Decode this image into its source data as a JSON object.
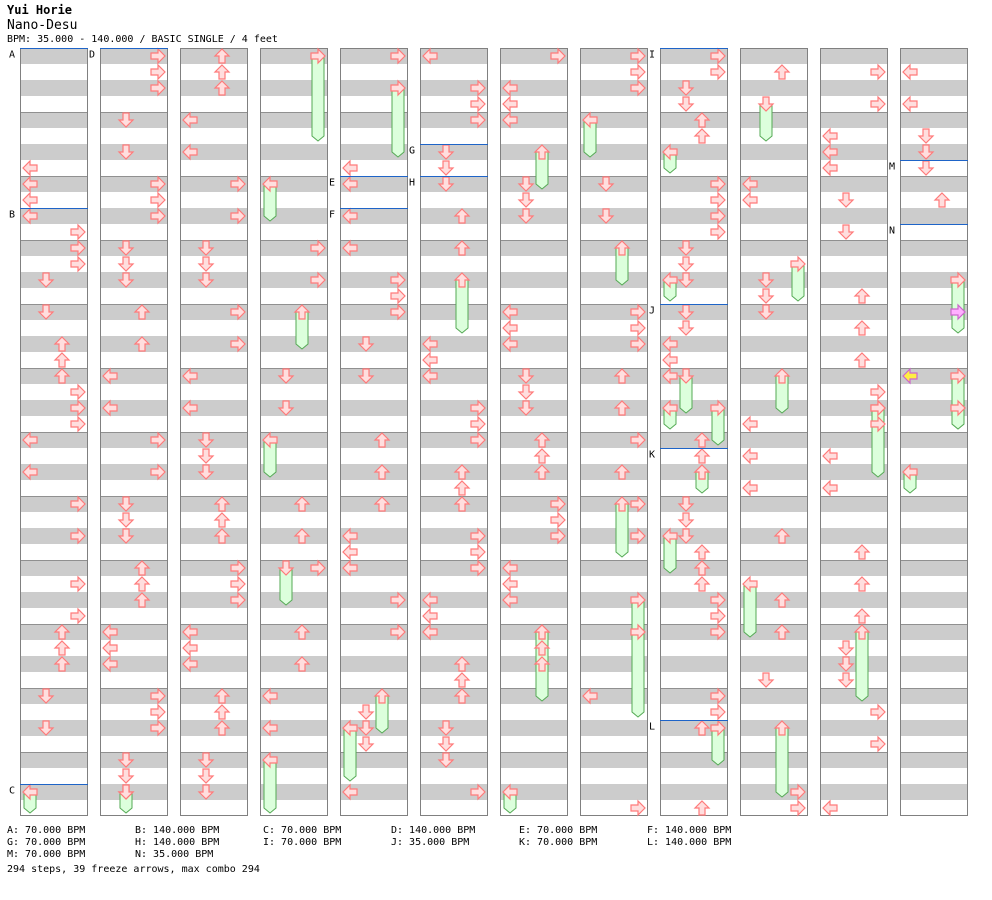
{
  "artist": "Yui Horie",
  "title": "Nano-Desu",
  "meta_line": "BPM: 35.000 - 140.000 / BASIC SINGLE / 4 feet",
  "legend": [
    [
      "A: 70.000 BPM",
      "B: 140.000 BPM",
      "C: 70.000 BPM",
      "D: 140.000 BPM",
      "E: 70.000 BPM",
      "F: 140.000 BPM"
    ],
    [
      "G: 70.000 BPM",
      "H: 140.000 BPM",
      "I: 70.000 BPM",
      "J: 35.000 BPM",
      "K: 70.000 BPM",
      "L: 140.000 BPM"
    ],
    [
      "M: 70.000 BPM",
      "N: 35.000 BPM"
    ]
  ],
  "stats": "294 steps, 39 freeze arrows, max combo 294",
  "chart_data": {
    "type": "step_chart",
    "lanes": [
      "left",
      "down",
      "up",
      "right"
    ],
    "columns": 12,
    "beats_per_column": 48,
    "colors": {
      "arrow": "#ff7a7a",
      "arrow_fill": "#ffdede",
      "freeze": "#a8e8a8",
      "freeze_fill": "#dcffdc",
      "band": "#cccccc",
      "bpm_line": "#1e64c8",
      "pink": "#ffb0ff",
      "yellow": "#ffee44"
    },
    "bpm_markers": [
      {
        "label": "A",
        "beat": 0
      },
      {
        "label": "B",
        "beat": 10
      },
      {
        "label": "C",
        "beat": 46
      },
      {
        "label": "D",
        "beat": 48
      },
      {
        "label": "E",
        "beat": 200
      },
      {
        "label": "F",
        "beat": 202
      },
      {
        "label": "G",
        "beat": 246
      },
      {
        "label": "H",
        "beat": 248
      },
      {
        "label": "I",
        "beat": 384
      },
      {
        "label": "J",
        "beat": 400
      },
      {
        "label": "K",
        "beat": 409
      },
      {
        "label": "L",
        "beat": 426
      },
      {
        "label": "M",
        "beat": 535
      },
      {
        "label": "N",
        "beat": 539
      }
    ],
    "notes": [
      [
        0,
        7,
        0
      ],
      [
        0,
        8,
        0
      ],
      [
        0,
        9,
        0
      ],
      [
        0,
        10,
        0
      ],
      [
        0,
        11,
        3
      ],
      [
        0,
        12,
        3
      ],
      [
        0,
        13,
        3
      ],
      [
        0,
        14,
        1
      ],
      [
        0,
        16,
        1
      ],
      [
        0,
        18,
        2
      ],
      [
        0,
        19,
        2
      ],
      [
        0,
        20,
        2
      ],
      [
        0,
        21,
        3
      ],
      [
        0,
        22,
        3
      ],
      [
        0,
        23,
        3
      ],
      [
        0,
        24,
        0
      ],
      [
        0,
        26,
        0
      ],
      [
        0,
        28,
        3
      ],
      [
        0,
        30,
        3
      ],
      [
        0,
        33,
        3
      ],
      [
        0,
        35,
        3
      ],
      [
        0,
        36,
        2
      ],
      [
        0,
        37,
        2
      ],
      [
        0,
        38,
        2
      ],
      [
        0,
        40,
        1
      ],
      [
        0,
        42,
        1
      ],
      [
        1,
        0,
        3
      ],
      [
        1,
        1,
        3
      ],
      [
        1,
        2,
        3
      ],
      [
        1,
        4,
        1
      ],
      [
        1,
        6,
        1
      ],
      [
        1,
        8,
        3
      ],
      [
        1,
        9,
        3
      ],
      [
        1,
        10,
        3
      ],
      [
        1,
        12,
        1
      ],
      [
        1,
        13,
        1
      ],
      [
        1,
        14,
        1
      ],
      [
        1,
        16,
        2
      ],
      [
        1,
        18,
        2
      ],
      [
        1,
        20,
        0
      ],
      [
        1,
        22,
        0
      ],
      [
        1,
        24,
        3
      ],
      [
        1,
        26,
        3
      ],
      [
        1,
        28,
        1
      ],
      [
        1,
        29,
        1
      ],
      [
        1,
        30,
        1
      ],
      [
        1,
        32,
        2
      ],
      [
        1,
        33,
        2
      ],
      [
        1,
        34,
        2
      ],
      [
        1,
        36,
        0
      ],
      [
        1,
        37,
        0
      ],
      [
        1,
        38,
        0
      ],
      [
        1,
        40,
        3
      ],
      [
        1,
        41,
        3
      ],
      [
        1,
        42,
        3
      ],
      [
        1,
        44,
        1
      ],
      [
        1,
        45,
        1
      ],
      [
        1,
        46,
        1
      ],
      [
        2,
        0,
        2
      ],
      [
        2,
        1,
        2
      ],
      [
        2,
        2,
        2
      ],
      [
        2,
        4,
        0
      ],
      [
        2,
        6,
        0
      ],
      [
        2,
        8,
        3
      ],
      [
        2,
        10,
        3
      ],
      [
        2,
        12,
        1
      ],
      [
        2,
        13,
        1
      ],
      [
        2,
        14,
        1
      ],
      [
        2,
        16,
        3
      ],
      [
        2,
        18,
        3
      ],
      [
        2,
        20,
        0
      ],
      [
        2,
        22,
        0
      ],
      [
        2,
        24,
        1
      ],
      [
        2,
        25,
        1
      ],
      [
        2,
        26,
        1
      ],
      [
        2,
        28,
        2
      ],
      [
        2,
        29,
        2
      ],
      [
        2,
        30,
        2
      ],
      [
        2,
        32,
        3
      ],
      [
        2,
        33,
        3
      ],
      [
        2,
        34,
        3
      ],
      [
        2,
        36,
        0
      ],
      [
        2,
        37,
        0
      ],
      [
        2,
        38,
        0
      ],
      [
        2,
        40,
        2
      ],
      [
        2,
        41,
        2
      ],
      [
        2,
        42,
        2
      ],
      [
        2,
        44,
        1
      ],
      [
        2,
        45,
        1
      ],
      [
        2,
        46,
        1
      ],
      [
        3,
        12,
        3
      ],
      [
        3,
        14,
        3
      ],
      [
        3,
        20,
        1
      ],
      [
        3,
        22,
        1
      ],
      [
        3,
        28,
        2
      ],
      [
        3,
        30,
        2
      ],
      [
        3,
        32,
        3
      ],
      [
        3,
        36,
        2
      ],
      [
        3,
        38,
        2
      ],
      [
        3,
        40,
        0
      ],
      [
        3,
        42,
        0
      ],
      [
        4,
        0,
        3
      ],
      [
        4,
        7,
        0
      ],
      [
        4,
        8,
        0
      ],
      [
        4,
        10,
        0
      ],
      [
        4,
        12,
        0
      ],
      [
        4,
        14,
        3
      ],
      [
        4,
        15,
        3
      ],
      [
        4,
        16,
        3
      ],
      [
        4,
        18,
        1
      ],
      [
        4,
        20,
        1
      ],
      [
        4,
        24,
        2
      ],
      [
        4,
        26,
        2
      ],
      [
        4,
        28,
        2
      ],
      [
        4,
        30,
        0
      ],
      [
        4,
        31,
        0
      ],
      [
        4,
        32,
        0
      ],
      [
        4,
        34,
        3
      ],
      [
        4,
        36,
        3
      ],
      [
        4,
        41,
        1
      ],
      [
        4,
        42,
        1
      ],
      [
        4,
        43,
        1
      ],
      [
        4,
        46,
        0
      ],
      [
        5,
        0,
        0
      ],
      [
        5,
        2,
        3
      ],
      [
        5,
        3,
        3
      ],
      [
        5,
        4,
        3
      ],
      [
        5,
        6,
        1
      ],
      [
        5,
        7,
        1
      ],
      [
        5,
        8,
        1
      ],
      [
        5,
        10,
        2
      ],
      [
        5,
        12,
        2
      ],
      [
        5,
        18,
        0
      ],
      [
        5,
        19,
        0
      ],
      [
        5,
        20,
        0
      ],
      [
        5,
        22,
        3
      ],
      [
        5,
        23,
        3
      ],
      [
        5,
        24,
        3
      ],
      [
        5,
        26,
        2
      ],
      [
        5,
        27,
        2
      ],
      [
        5,
        28,
        2
      ],
      [
        5,
        30,
        3
      ],
      [
        5,
        31,
        3
      ],
      [
        5,
        32,
        3
      ],
      [
        5,
        34,
        0
      ],
      [
        5,
        35,
        0
      ],
      [
        5,
        36,
        0
      ],
      [
        5,
        38,
        2
      ],
      [
        5,
        39,
        2
      ],
      [
        5,
        40,
        2
      ],
      [
        5,
        42,
        1
      ],
      [
        5,
        43,
        1
      ],
      [
        5,
        44,
        1
      ],
      [
        5,
        46,
        3
      ],
      [
        6,
        0,
        3
      ],
      [
        6,
        2,
        0
      ],
      [
        6,
        3,
        0
      ],
      [
        6,
        4,
        0
      ],
      [
        6,
        8,
        1
      ],
      [
        6,
        9,
        1
      ],
      [
        6,
        10,
        1
      ],
      [
        6,
        16,
        0
      ],
      [
        6,
        17,
        0
      ],
      [
        6,
        18,
        0
      ],
      [
        6,
        20,
        1
      ],
      [
        6,
        21,
        1
      ],
      [
        6,
        22,
        1
      ],
      [
        6,
        24,
        2
      ],
      [
        6,
        25,
        2
      ],
      [
        6,
        26,
        2
      ],
      [
        6,
        28,
        3
      ],
      [
        6,
        29,
        3
      ],
      [
        6,
        30,
        3
      ],
      [
        6,
        32,
        0
      ],
      [
        6,
        33,
        0
      ],
      [
        6,
        34,
        0
      ],
      [
        6,
        36,
        2
      ],
      [
        6,
        37,
        2
      ],
      [
        6,
        38,
        2
      ],
      [
        7,
        0,
        3
      ],
      [
        7,
        1,
        3
      ],
      [
        7,
        2,
        3
      ],
      [
        7,
        8,
        1
      ],
      [
        7,
        10,
        1
      ],
      [
        7,
        16,
        3
      ],
      [
        7,
        17,
        3
      ],
      [
        7,
        18,
        3
      ],
      [
        7,
        20,
        2
      ],
      [
        7,
        22,
        2
      ],
      [
        7,
        24,
        3
      ],
      [
        7,
        26,
        2
      ],
      [
        7,
        28,
        3
      ],
      [
        7,
        30,
        3
      ],
      [
        7,
        40,
        0
      ],
      [
        7,
        47,
        3
      ],
      [
        8,
        0,
        3
      ],
      [
        8,
        1,
        3
      ],
      [
        8,
        2,
        1
      ],
      [
        8,
        3,
        1
      ],
      [
        8,
        4,
        2
      ],
      [
        8,
        5,
        2
      ],
      [
        8,
        8,
        3
      ],
      [
        8,
        9,
        3
      ],
      [
        8,
        10,
        3
      ],
      [
        8,
        11,
        3
      ],
      [
        8,
        12,
        1
      ],
      [
        8,
        13,
        1
      ],
      [
        8,
        14,
        1
      ],
      [
        8,
        16,
        1
      ],
      [
        8,
        17,
        1
      ],
      [
        8,
        18,
        0
      ],
      [
        8,
        19,
        0
      ],
      [
        8,
        20,
        0
      ],
      [
        8,
        24,
        2
      ],
      [
        8,
        25,
        2
      ],
      [
        8,
        26,
        2
      ],
      [
        8,
        28,
        1
      ],
      [
        8,
        29,
        1
      ],
      [
        8,
        30,
        1
      ],
      [
        8,
        31,
        2
      ],
      [
        8,
        32,
        2
      ],
      [
        8,
        33,
        2
      ],
      [
        8,
        34,
        3
      ],
      [
        8,
        35,
        3
      ],
      [
        8,
        36,
        3
      ],
      [
        8,
        40,
        3
      ],
      [
        8,
        41,
        3
      ],
      [
        8,
        42,
        2
      ],
      [
        8,
        47,
        2
      ],
      [
        9,
        1,
        2
      ],
      [
        9,
        8,
        0
      ],
      [
        9,
        9,
        0
      ],
      [
        9,
        14,
        1
      ],
      [
        9,
        15,
        1
      ],
      [
        9,
        16,
        1
      ],
      [
        9,
        23,
        0
      ],
      [
        9,
        25,
        0
      ],
      [
        9,
        27,
        0
      ],
      [
        9,
        30,
        2
      ],
      [
        9,
        34,
        2
      ],
      [
        9,
        36,
        2
      ],
      [
        9,
        39,
        1
      ],
      [
        9,
        46,
        3
      ],
      [
        9,
        47,
        3
      ],
      [
        10,
        1,
        3
      ],
      [
        10,
        3,
        3
      ],
      [
        10,
        5,
        0
      ],
      [
        10,
        6,
        0
      ],
      [
        10,
        7,
        0
      ],
      [
        10,
        9,
        1
      ],
      [
        10,
        11,
        1
      ],
      [
        10,
        15,
        2
      ],
      [
        10,
        17,
        2
      ],
      [
        10,
        19,
        2
      ],
      [
        10,
        21,
        3
      ],
      [
        10,
        22,
        3
      ],
      [
        10,
        23,
        3
      ],
      [
        10,
        25,
        0
      ],
      [
        10,
        27,
        0
      ],
      [
        10,
        31,
        2
      ],
      [
        10,
        33,
        2
      ],
      [
        10,
        35,
        2
      ],
      [
        10,
        37,
        1
      ],
      [
        10,
        38,
        1
      ],
      [
        10,
        39,
        1
      ],
      [
        10,
        41,
        3
      ],
      [
        10,
        43,
        3
      ],
      [
        10,
        47,
        0
      ],
      [
        11,
        1,
        0
      ],
      [
        11,
        3,
        0
      ],
      [
        11,
        5,
        1
      ],
      [
        11,
        6,
        1
      ],
      [
        11,
        7,
        1
      ],
      [
        11,
        9,
        2
      ]
    ],
    "freezes": [
      [
        0,
        46,
        47,
        0
      ],
      [
        3,
        0,
        5,
        3
      ],
      [
        3,
        8,
        10,
        0
      ],
      [
        3,
        16,
        18,
        2
      ],
      [
        3,
        24,
        26,
        0
      ],
      [
        3,
        32,
        34,
        1
      ],
      [
        3,
        44,
        47,
        0
      ],
      [
        4,
        2,
        6,
        3
      ],
      [
        4,
        40,
        42,
        2
      ],
      [
        5,
        14,
        17,
        2
      ],
      [
        6,
        6,
        8,
        2
      ],
      [
        6,
        36,
        40,
        2
      ],
      [
        7,
        4,
        6,
        0
      ],
      [
        7,
        12,
        14,
        2
      ],
      [
        7,
        28,
        31,
        2
      ],
      [
        7,
        34,
        37,
        3
      ],
      [
        8,
        6,
        7,
        0
      ],
      [
        8,
        14,
        15,
        0
      ],
      [
        8,
        20,
        22,
        1
      ],
      [
        8,
        22,
        23,
        0
      ],
      [
        8,
        26,
        27,
        2
      ],
      [
        8,
        22,
        24,
        3
      ],
      [
        8,
        30,
        32,
        0
      ],
      [
        8,
        42,
        44,
        3
      ],
      [
        9,
        3,
        5,
        1
      ],
      [
        9,
        13,
        15,
        3
      ],
      [
        9,
        20,
        22,
        2
      ],
      [
        9,
        33,
        36,
        0
      ],
      [
        9,
        42,
        46,
        2
      ],
      [
        10,
        22,
        26,
        3
      ],
      [
        10,
        36,
        40,
        2
      ],
      [
        11,
        14,
        17,
        3
      ],
      [
        11,
        20,
        23,
        3
      ],
      [
        11,
        22,
        23,
        3
      ],
      [
        11,
        26,
        27,
        0
      ],
      [
        7,
        36,
        41,
        3
      ],
      [
        1,
        46,
        47,
        1
      ],
      [
        4,
        42,
        45,
        0
      ],
      [
        6,
        46,
        47,
        0
      ]
    ],
    "special": [
      {
        "column": 11,
        "beat": 16,
        "lane": 3,
        "kind": "pink-right"
      },
      {
        "column": 11,
        "beat": 20,
        "lane": 0,
        "kind": "yellow-left"
      }
    ]
  }
}
